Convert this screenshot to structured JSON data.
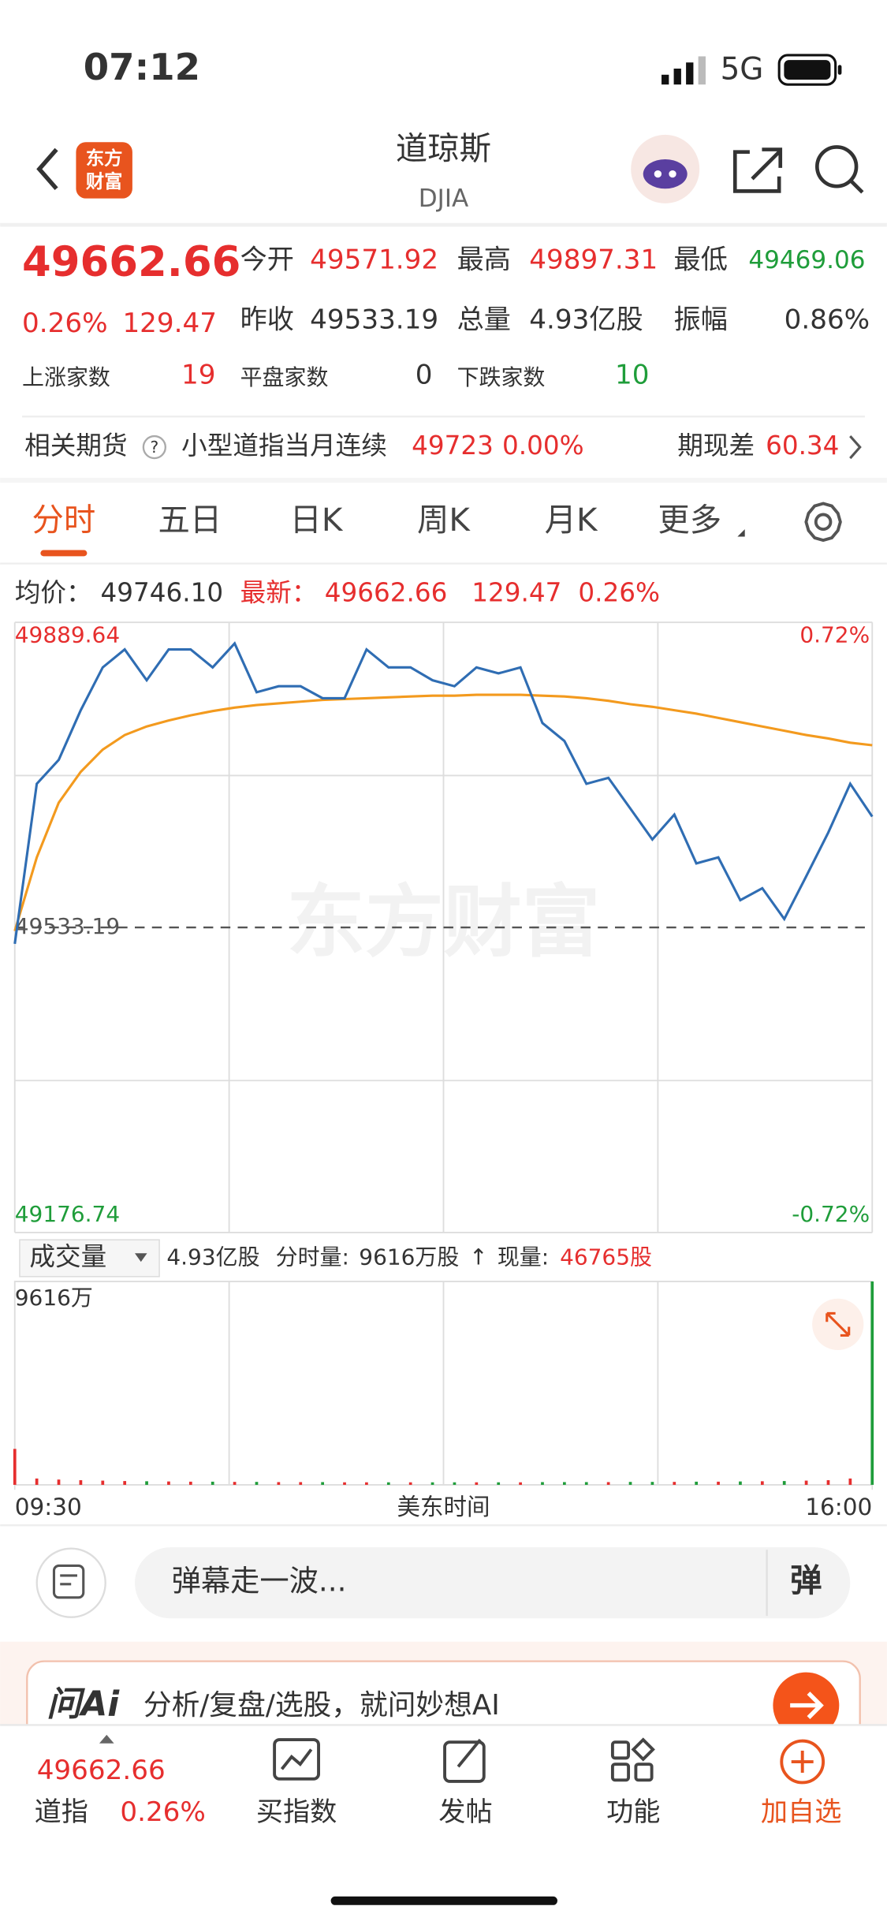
{
  "status_bar": {
    "time": "07:12",
    "network": "5G"
  },
  "header": {
    "logo": [
      "东方",
      "财富"
    ],
    "title": "道琼斯",
    "subtitle": "DJIA"
  },
  "quote": {
    "price": "49662.66",
    "change_pct": "0.26%",
    "change": "129.47",
    "stats": [
      {
        "label": "今开",
        "value": "49571.92"
      },
      {
        "label": "最高",
        "value": "49897.31"
      },
      {
        "label": "最低",
        "value": "49469.06"
      },
      {
        "label": "昨收",
        "value": "49533.19"
      },
      {
        "label": "总量",
        "value": "4.93亿股"
      },
      {
        "label": "振幅",
        "value": "0.86%"
      }
    ],
    "breadth": [
      {
        "label": "上涨家数",
        "value": "19"
      },
      {
        "label": "平盘家数",
        "value": "0"
      },
      {
        "label": "下跌家数",
        "value": "10"
      }
    ]
  },
  "futures": {
    "label": "相关期货",
    "help": "?",
    "name": "小型道指当月连续",
    "price": "49723",
    "change_pct": "0.00%",
    "basis_label": "期现差",
    "basis": "60.34"
  },
  "tabs": {
    "items": [
      "分时",
      "五日",
      "日K",
      "周K",
      "月K",
      "更多"
    ],
    "active": 0
  },
  "info_line": {
    "avg_label": "均价：",
    "avg": "49746.10",
    "last_label": "最新：",
    "last": "49662.66",
    "change": "129.47",
    "change_pct": "0.26%"
  },
  "chart_data": [
    {
      "type": "line",
      "watermark": "东方财富",
      "x": [
        0,
        10,
        20,
        30,
        40,
        50,
        60,
        70,
        80,
        90,
        100,
        110,
        120,
        130,
        140,
        150,
        160,
        170,
        180,
        190,
        200,
        210,
        220,
        230,
        240,
        250,
        260,
        270,
        280,
        290,
        300,
        310,
        320,
        330,
        340,
        350,
        360,
        370,
        380,
        390
      ],
      "xlim": [
        0,
        390
      ],
      "series": [
        {
          "name": "最新",
          "color": "#2f6db3",
          "values": [
            49514,
            49701,
            49729,
            49787,
            49837,
            49858,
            49822,
            49858,
            49858,
            49837,
            49865,
            49808,
            49815,
            49815,
            49801,
            49801,
            49858,
            49837,
            49837,
            49822,
            49815,
            49837,
            49830,
            49837,
            49772,
            49751,
            49701,
            49708,
            49672,
            49636,
            49665,
            49608,
            49615,
            49565,
            49579,
            49543,
            49593,
            49644,
            49701,
            49662.66
          ]
        },
        {
          "name": "均价",
          "color": "#f39a1e",
          "values": [
            49529,
            49615,
            49679,
            49715,
            49741,
            49758,
            49768,
            49775,
            49781,
            49786,
            49790,
            49793,
            49795,
            49797,
            49799,
            49800,
            49801,
            49802,
            49803,
            49804,
            49804,
            49805,
            49805,
            49805,
            49804,
            49803,
            49801,
            49798,
            49794,
            49791,
            49787,
            49783,
            49778,
            49773,
            49768,
            49763,
            49758,
            49754,
            49749,
            49746.1
          ]
        }
      ],
      "ylim": [
        49176.74,
        49889.64
      ],
      "yticks": [
        49889.64,
        49533.19,
        49176.74
      ],
      "y2lim": [
        -0.72,
        0.72
      ],
      "y2ticks": [
        {
          "value": 0.72,
          "label": "0.72%"
        },
        {
          "value": -0.72,
          "label": "-0.72%"
        }
      ]
    },
    {
      "type": "bar",
      "x": [
        0,
        10,
        20,
        30,
        40,
        50,
        60,
        70,
        80,
        90,
        100,
        110,
        120,
        130,
        140,
        150,
        160,
        170,
        180,
        190,
        200,
        210,
        220,
        230,
        240,
        250,
        260,
        270,
        280,
        290,
        300,
        310,
        320,
        330,
        340,
        350,
        360,
        370,
        380,
        390
      ],
      "xlim": [
        0,
        390
      ],
      "xticks": [
        {
          "value": 0,
          "label": "09:30"
        },
        {
          "value": 390,
          "label": "16:00"
        }
      ],
      "xlabel": "美东时间",
      "values": [
        17000000,
        3000000,
        2500000,
        2200000,
        2000000,
        1800000,
        1700000,
        1600000,
        1500000,
        1500000,
        1400000,
        1400000,
        1300000,
        1300000,
        1300000,
        1200000,
        1200000,
        1200000,
        1200000,
        1200000,
        1200000,
        1200000,
        1200000,
        1200000,
        1300000,
        1300000,
        1300000,
        1300000,
        1400000,
        1400000,
        1400000,
        1500000,
        1500000,
        1600000,
        1700000,
        1800000,
        2000000,
        2200000,
        3000000,
        96160000
      ],
      "up_color": "#e62e2e",
      "down_color": "#1f9d3a",
      "ylim": [
        0,
        96160000
      ],
      "yticks": [
        {
          "value": 96160000,
          "label": "9616万"
        }
      ]
    }
  ],
  "volume_bar": {
    "selector": "成交量",
    "total": "4.93亿股",
    "period_label": "分时量:",
    "period_value": "9616万股",
    "arrow": "↑",
    "current_label": "现量:",
    "current_value": "46765股"
  },
  "comment": {
    "placeholder": "弹幕走一波...",
    "button": "弹"
  },
  "ai_banner": {
    "logo": "问Ai",
    "text": "分析/复盘/选股，就问妙想AI"
  },
  "bottom_nav": {
    "price": "49662.66",
    "name": "道指",
    "change_pct": "0.26%",
    "items": [
      "买指数",
      "发帖",
      "功能",
      "加自选"
    ]
  }
}
